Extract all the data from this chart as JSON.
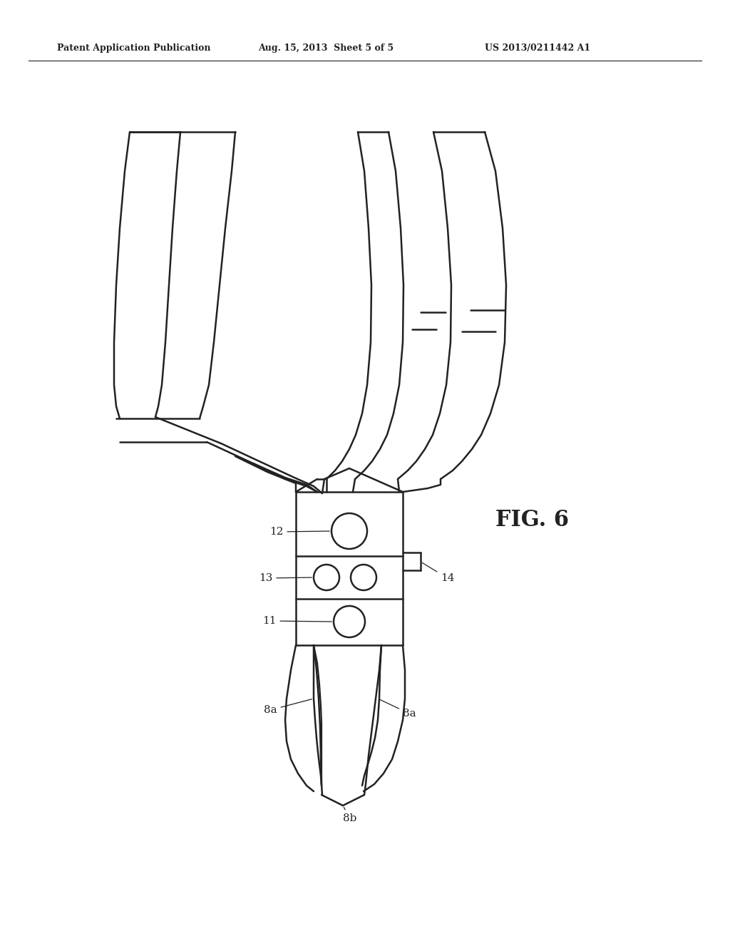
{
  "background_color": "#ffffff",
  "line_color": "#222222",
  "line_width": 1.8,
  "header_left": "Patent Application Publication",
  "header_mid": "Aug. 15, 2013  Sheet 5 of 5",
  "header_right": "US 2013/0211442 A1",
  "fig_label": "FIG. 6"
}
